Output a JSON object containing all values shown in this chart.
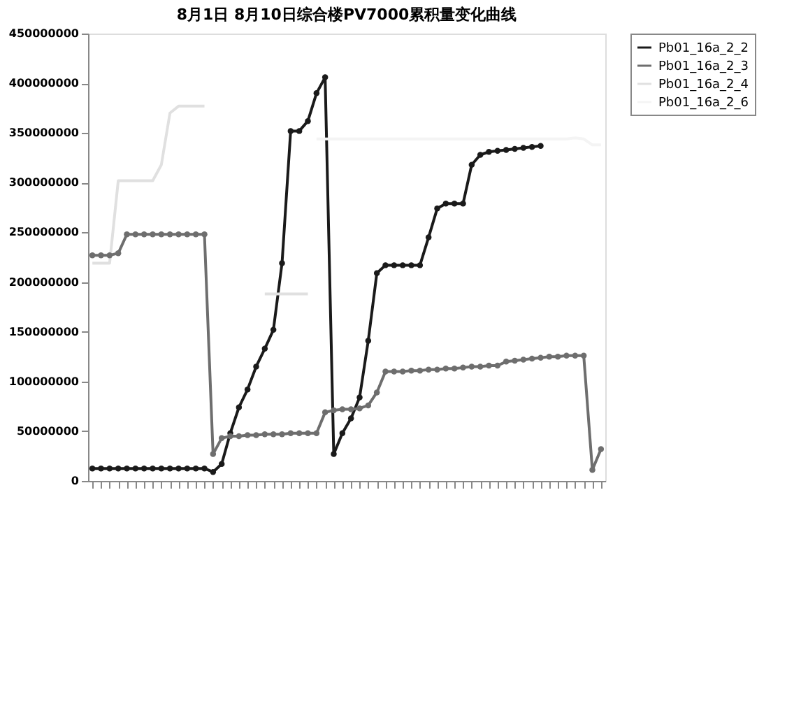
{
  "chart_data": {
    "type": "line",
    "title": "8月1日 8月10日综合楼PV7000累积量变化曲线",
    "categories": [
      null,
      null,
      null,
      null,
      null,
      null,
      null,
      null,
      null,
      null,
      null,
      null,
      null,
      null,
      null,
      null,
      null,
      null,
      null,
      null,
      null,
      null,
      null,
      null,
      null,
      null,
      null,
      null,
      null,
      null,
      null,
      null,
      null,
      null,
      null,
      null,
      null,
      null,
      null,
      null,
      null,
      null,
      null,
      null,
      null,
      null,
      null,
      null,
      null,
      null,
      null,
      null,
      null,
      null,
      null,
      null,
      null,
      null,
      null,
      null
    ],
    "ylim": [
      0,
      450000000
    ],
    "yticks": [
      0,
      50000000,
      100000000,
      150000000,
      200000000,
      250000000,
      300000000,
      350000000,
      400000000,
      450000000
    ],
    "tick_labels": "y",
    "grid": false,
    "legend": "right",
    "series": [
      {
        "name": "Pb01_16a_2_2",
        "color": "#1a1a1a",
        "marker": "circle",
        "values": [
          12500000,
          12500000,
          12500000,
          12500000,
          12500000,
          12500000,
          12500000,
          12500000,
          12500000,
          12500000,
          12500000,
          12500000,
          12500000,
          12500000,
          9000000,
          17000000,
          48000000,
          74000000,
          92000000,
          115000000,
          133000000,
          152000000,
          219000000,
          352000000,
          352000000,
          362000000,
          390000000,
          406000000,
          27000000,
          48000000,
          63000000,
          84000000,
          141000000,
          209000000,
          217000000,
          217000000,
          217000000,
          217000000,
          217000000,
          245000000,
          274000000,
          279000000,
          279000000,
          279000000,
          318000000,
          328000000,
          331000000,
          332000000,
          333000000,
          334000000,
          335000000,
          336000000,
          337000000,
          null,
          null,
          null,
          null,
          null,
          null,
          null
        ]
      },
      {
        "name": "Pb01_16a_2_3",
        "color": "#6e6e6e",
        "marker": "circle",
        "values": [
          227000000,
          227000000,
          227000000,
          229000000,
          248000000,
          248000000,
          248000000,
          248000000,
          248000000,
          248000000,
          248000000,
          248000000,
          248000000,
          248000000,
          27000000,
          43000000,
          45000000,
          45000000,
          46000000,
          46000000,
          47000000,
          47000000,
          47000000,
          48000000,
          48000000,
          48000000,
          48000000,
          69000000,
          71000000,
          72000000,
          72000000,
          73000000,
          76000000,
          89000000,
          110000000,
          110000000,
          110000000,
          111000000,
          111000000,
          112000000,
          112000000,
          113000000,
          113000000,
          114000000,
          115000000,
          115000000,
          116000000,
          116000000,
          120000000,
          121000000,
          122000000,
          123000000,
          124000000,
          125000000,
          125000000,
          126000000,
          126000000,
          126000000,
          11000000,
          32000000
        ]
      },
      {
        "name": "Pb01_16a_2_4",
        "color": "#e0e0e0",
        "marker": "none",
        "values": [
          219000000,
          219000000,
          219000000,
          302000000,
          302000000,
          302000000,
          302000000,
          302000000,
          318000000,
          370000000,
          377000000,
          377000000,
          377000000,
          377000000,
          null,
          null,
          null,
          null,
          null,
          null,
          188000000,
          188000000,
          188000000,
          188000000,
          188000000,
          188000000,
          null,
          null,
          null,
          null,
          null,
          null,
          null,
          null,
          null,
          null,
          null,
          null,
          null,
          null,
          null,
          null,
          null,
          null,
          null,
          null,
          null,
          null,
          null,
          null,
          null,
          null,
          null,
          null,
          null,
          null,
          null,
          null,
          null,
          null
        ]
      },
      {
        "name": "Pb01_16a_2_6",
        "color": "#f4f4f4",
        "marker": "none",
        "values": [
          null,
          null,
          null,
          null,
          null,
          null,
          null,
          null,
          null,
          null,
          null,
          null,
          null,
          null,
          null,
          null,
          null,
          null,
          null,
          null,
          null,
          null,
          null,
          null,
          null,
          null,
          344000000,
          344000000,
          344000000,
          344000000,
          344000000,
          344000000,
          344000000,
          344000000,
          344000000,
          344000000,
          344000000,
          344000000,
          344000000,
          344000000,
          344000000,
          344000000,
          344000000,
          344000000,
          344000000,
          344000000,
          344000000,
          344000000,
          344000000,
          344000000,
          344000000,
          344000000,
          344000000,
          344000000,
          344000000,
          344000000,
          345000000,
          344000000,
          338000000,
          338000000
        ]
      }
    ]
  }
}
